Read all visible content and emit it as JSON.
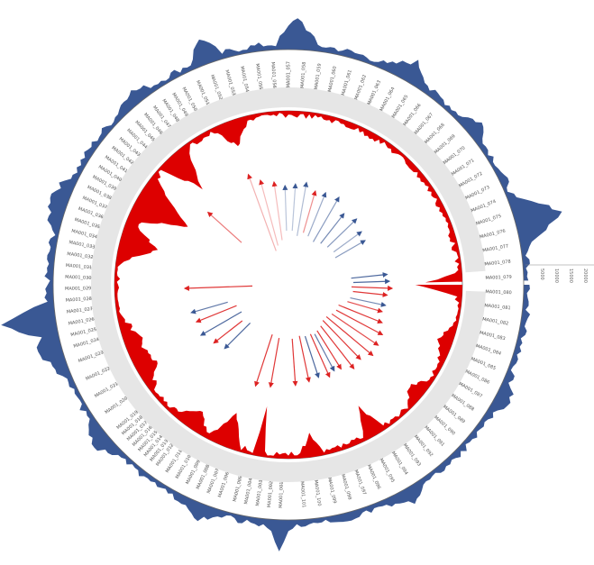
{
  "colors": {
    "outer_coverage": "#3a5894",
    "inner_coverage": "#dd0000",
    "band": "#e6e6e6",
    "ring_line": "#666666",
    "forward_arrow": "#dd2222",
    "reverse_arrow": "#3a5894",
    "label": "#555555"
  },
  "scale_labels": [
    "5000",
    "10000",
    "15000",
    "20000"
  ],
  "gene_labels": [
    {
      "text": "MA001_001",
      "angle": 92
    },
    {
      "text": "MA001_002",
      "angle": 95
    },
    {
      "text": "MA001_003",
      "angle": 98
    },
    {
      "text": "MA001_004",
      "angle": 101
    },
    {
      "text": "MA001_005",
      "angle": 104
    },
    {
      "text": "MA001_006",
      "angle": 108
    },
    {
      "text": "MA001_007",
      "angle": 111
    },
    {
      "text": "MA001_008",
      "angle": 114
    },
    {
      "text": "MA001_009",
      "angle": 117
    },
    {
      "text": "MA001_010",
      "angle": 120
    },
    {
      "text": "MA001_011",
      "angle": 123
    },
    {
      "text": "MA001_012",
      "angle": 126
    },
    {
      "text": "MA001_013",
      "angle": 128
    },
    {
      "text": "MA001_014",
      "angle": 130
    },
    {
      "text": "MA001_015",
      "angle": 132
    },
    {
      "text": "MA001_016",
      "angle": 134
    },
    {
      "text": "MA001_017",
      "angle": 136
    },
    {
      "text": "MA001_018",
      "angle": 138
    },
    {
      "text": "MA001_019",
      "angle": 140
    },
    {
      "text": "MA001_020",
      "angle": 145
    },
    {
      "text": "MA001_021",
      "angle": 150
    },
    {
      "text": "MA001_022",
      "angle": 155
    },
    {
      "text": "MA001_023",
      "angle": 160
    },
    {
      "text": "MA001_024",
      "angle": 164
    },
    {
      "text": "MA001_025",
      "angle": 167
    },
    {
      "text": "MA001_026",
      "angle": 170
    },
    {
      "text": "MA001_027",
      "angle": 173
    },
    {
      "text": "MA001_028",
      "angle": 176
    },
    {
      "text": "MA001_029",
      "angle": 179
    },
    {
      "text": "MA001_030",
      "angle": 182
    },
    {
      "text": "MA001_031",
      "angle": 185
    },
    {
      "text": "MA001_032",
      "angle": 188
    },
    {
      "text": "MA001_033",
      "angle": 191
    },
    {
      "text": "MA001_034",
      "angle": 194
    },
    {
      "text": "MA001_035",
      "angle": 197
    },
    {
      "text": "MA001_036",
      "angle": 200
    },
    {
      "text": "MA001_037",
      "angle": 203
    },
    {
      "text": "MA001_038",
      "angle": 206
    },
    {
      "text": "MA001_039",
      "angle": 209
    },
    {
      "text": "MA001_040",
      "angle": 212
    },
    {
      "text": "MA001_041",
      "angle": 215
    },
    {
      "text": "MA001_042",
      "angle": 218
    },
    {
      "text": "MA001_043",
      "angle": 221
    },
    {
      "text": "MA001_044",
      "angle": 224
    },
    {
      "text": "MA001_045",
      "angle": 227
    },
    {
      "text": "MA001_046",
      "angle": 230
    },
    {
      "text": "MA001_047",
      "angle": 233
    },
    {
      "text": "MA001_048",
      "angle": 236
    },
    {
      "text": "MA001_049",
      "angle": 239
    },
    {
      "text": "MA001_050",
      "angle": 242
    },
    {
      "text": "MA001_051",
      "angle": 246
    },
    {
      "text": "MA001_052",
      "angle": 250
    },
    {
      "text": "MA001_053",
      "angle": 254
    },
    {
      "text": "MA001_054",
      "angle": 258
    },
    {
      "text": "MA001_055",
      "angle": 262
    },
    {
      "text": "MA001_056",
      "angle": 266
    },
    {
      "text": "MA001_057",
      "angle": 270
    },
    {
      "text": "MA001_058",
      "angle": 274
    },
    {
      "text": "MA001_059",
      "angle": 278
    },
    {
      "text": "MA001_060",
      "angle": 282
    },
    {
      "text": "MA001_061",
      "angle": 286
    },
    {
      "text": "MA001_062",
      "angle": 290
    },
    {
      "text": "MA001_063",
      "angle": 294
    },
    {
      "text": "MA001_064",
      "angle": 298
    },
    {
      "text": "MA001_065",
      "angle": 302
    },
    {
      "text": "MA001_066",
      "angle": 306
    },
    {
      "text": "MA001_067",
      "angle": 310
    },
    {
      "text": "MA001_068",
      "angle": 314
    },
    {
      "text": "MA001_069",
      "angle": 318
    },
    {
      "text": "MA001_070",
      "angle": 322
    },
    {
      "text": "MA001_071",
      "angle": 326
    },
    {
      "text": "MA001_072",
      "angle": 330
    },
    {
      "text": "MA001_073",
      "angle": 334
    },
    {
      "text": "MA001_074",
      "angle": 338
    },
    {
      "text": "MA001_075",
      "angle": 342
    },
    {
      "text": "MA001_076",
      "angle": 346
    },
    {
      "text": "MA001_077",
      "angle": 350
    },
    {
      "text": "MA001_078",
      "angle": 354
    },
    {
      "text": "MA001_079",
      "angle": 358
    },
    {
      "text": "MA001_080",
      "angle": 2
    },
    {
      "text": "MA001_081",
      "angle": 6
    },
    {
      "text": "MA001_082",
      "angle": 10
    },
    {
      "text": "MA001_083",
      "angle": 14
    },
    {
      "text": "MA001_084",
      "angle": 18
    },
    {
      "text": "MA001_085",
      "angle": 22
    },
    {
      "text": "MA001_086",
      "angle": 26
    },
    {
      "text": "MA001_087",
      "angle": 30
    },
    {
      "text": "MA001_088",
      "angle": 34
    },
    {
      "text": "MA001_089",
      "angle": 38
    },
    {
      "text": "MA001_090",
      "angle": 42
    },
    {
      "text": "MA001_091",
      "angle": 46
    },
    {
      "text": "MA001_092",
      "angle": 50
    },
    {
      "text": "MA001_093",
      "angle": 54
    },
    {
      "text": "MA001_094",
      "angle": 58
    },
    {
      "text": "MA001_095",
      "angle": 62
    },
    {
      "text": "MA001_096",
      "angle": 66
    },
    {
      "text": "MA001_097",
      "angle": 70
    },
    {
      "text": "MA001_098",
      "angle": 74
    },
    {
      "text": "MA001_099",
      "angle": 78
    },
    {
      "text": "MA001_100",
      "angle": 82
    },
    {
      "text": "MA001_101",
      "angle": 86
    }
  ]
}
